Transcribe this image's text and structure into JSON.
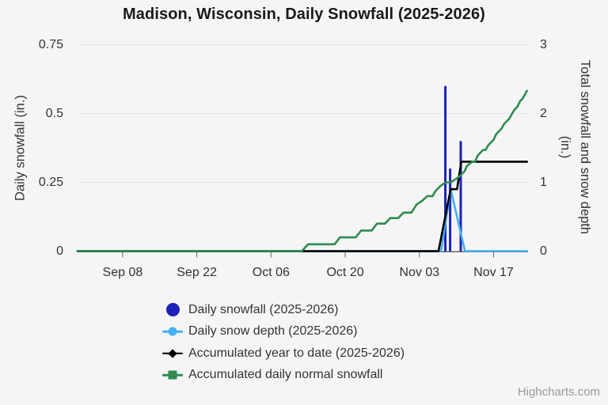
{
  "title": "Madison, Wisconsin, Daily Snowfall (2025-2026)",
  "credits": {
    "label": "Highcharts.com"
  },
  "colors": {
    "background": "#f5f5f6",
    "gridline": "#e6e6e6",
    "axis_line": "#666666",
    "text": "#333333",
    "title_text": "#1a1a1a",
    "credits_text": "#9a9a9a"
  },
  "chart_data": {
    "type": "mixed-column-line",
    "title": "Madison, Wisconsin, Daily Snowfall (2025-2026)",
    "grid": "horizontal-only",
    "legend_position": "bottom-left-stacked",
    "x_axis": {
      "epoch_note": "day 0 = Sep 01",
      "domain_days": [
        -1.5,
        83.5
      ],
      "ticks": [
        {
          "label": "Sep 08",
          "day": 7
        },
        {
          "label": "Sep 22",
          "day": 21
        },
        {
          "label": "Oct 06",
          "day": 35
        },
        {
          "label": "Oct 20",
          "day": 49
        },
        {
          "label": "Nov 03",
          "day": 63
        },
        {
          "label": "Nov 17",
          "day": 77
        }
      ]
    },
    "y_left": {
      "title": "Daily snowfall (in.)",
      "max": 0.75,
      "ticks": [
        {
          "label": "0",
          "v": 0
        },
        {
          "label": "0.25",
          "v": 0.25
        },
        {
          "label": "0.5",
          "v": 0.5
        },
        {
          "label": "0.75",
          "v": 0.75
        }
      ]
    },
    "y_right": {
      "title_line1": "Total snowfall and snow depth",
      "title_line2": "(in.)",
      "max": 3,
      "ticks": [
        {
          "label": "0",
          "v": 0
        },
        {
          "label": "1",
          "v": 1
        },
        {
          "label": "2",
          "v": 2
        },
        {
          "label": "3",
          "v": 3
        }
      ]
    },
    "series": [
      {
        "name": "Daily snowfall (2025-2026)",
        "type": "column",
        "axis": "left",
        "color": "#1e22b8",
        "points": [
          {
            "date": "Nov 08",
            "day": 67.9,
            "value": 0.6
          },
          {
            "date": "Nov 09",
            "day": 68.8,
            "value": 0.3
          },
          {
            "date": "Nov 11",
            "day": 70.8,
            "value": 0.4
          }
        ]
      },
      {
        "name": "Daily snow depth (2025-2026)",
        "type": "line",
        "axis": "right",
        "color": "#43b0f1",
        "marker": "circle",
        "points_days": [
          [
            -1.5,
            0
          ],
          [
            67.1,
            0
          ],
          [
            68.9,
            0.9
          ],
          [
            71.6,
            0
          ],
          [
            83.3,
            0
          ]
        ]
      },
      {
        "name": "Accumulated year to date (2025-2026)",
        "type": "line",
        "axis": "right",
        "color": "#000000",
        "marker": "diamond",
        "points_days": [
          [
            -1.5,
            0
          ],
          [
            66.6,
            0
          ],
          [
            68.9,
            0.9
          ],
          [
            70.1,
            0.9
          ],
          [
            70.9,
            1.3
          ],
          [
            83.3,
            1.3
          ]
        ]
      },
      {
        "name": "Accumulated daily normal snowfall",
        "type": "line",
        "axis": "right",
        "color": "#2f8b50",
        "marker": "square",
        "points_days": [
          [
            -1.5,
            0
          ],
          [
            40.8,
            0
          ],
          [
            42,
            0.1
          ],
          [
            47,
            0.1
          ],
          [
            48,
            0.2
          ],
          [
            51,
            0.2
          ],
          [
            52,
            0.3
          ],
          [
            54,
            0.3
          ],
          [
            55,
            0.4
          ],
          [
            56.5,
            0.4
          ],
          [
            57.5,
            0.48
          ],
          [
            59,
            0.48
          ],
          [
            60,
            0.56
          ],
          [
            61.5,
            0.56
          ],
          [
            62.5,
            0.68
          ],
          [
            63.5,
            0.73
          ],
          [
            64.5,
            0.8
          ],
          [
            65.5,
            0.8
          ],
          [
            66,
            0.87
          ],
          [
            67,
            0.95
          ],
          [
            68,
            1.0
          ],
          [
            69,
            1.0
          ],
          [
            69.5,
            1.03
          ],
          [
            70.5,
            1.08
          ],
          [
            71.5,
            1.16
          ],
          [
            72,
            1.24
          ],
          [
            73,
            1.3
          ],
          [
            73.5,
            1.3
          ],
          [
            74,
            1.39
          ],
          [
            75,
            1.47
          ],
          [
            75.5,
            1.47
          ],
          [
            76,
            1.54
          ],
          [
            77,
            1.62
          ],
          [
            77.5,
            1.7
          ],
          [
            78.5,
            1.78
          ],
          [
            79,
            1.85
          ],
          [
            80,
            1.93
          ],
          [
            80.5,
            2.0
          ],
          [
            81,
            2.06
          ],
          [
            81.5,
            2.1
          ],
          [
            82,
            2.18
          ],
          [
            82.5,
            2.22
          ],
          [
            83.3,
            2.33
          ]
        ]
      }
    ]
  }
}
